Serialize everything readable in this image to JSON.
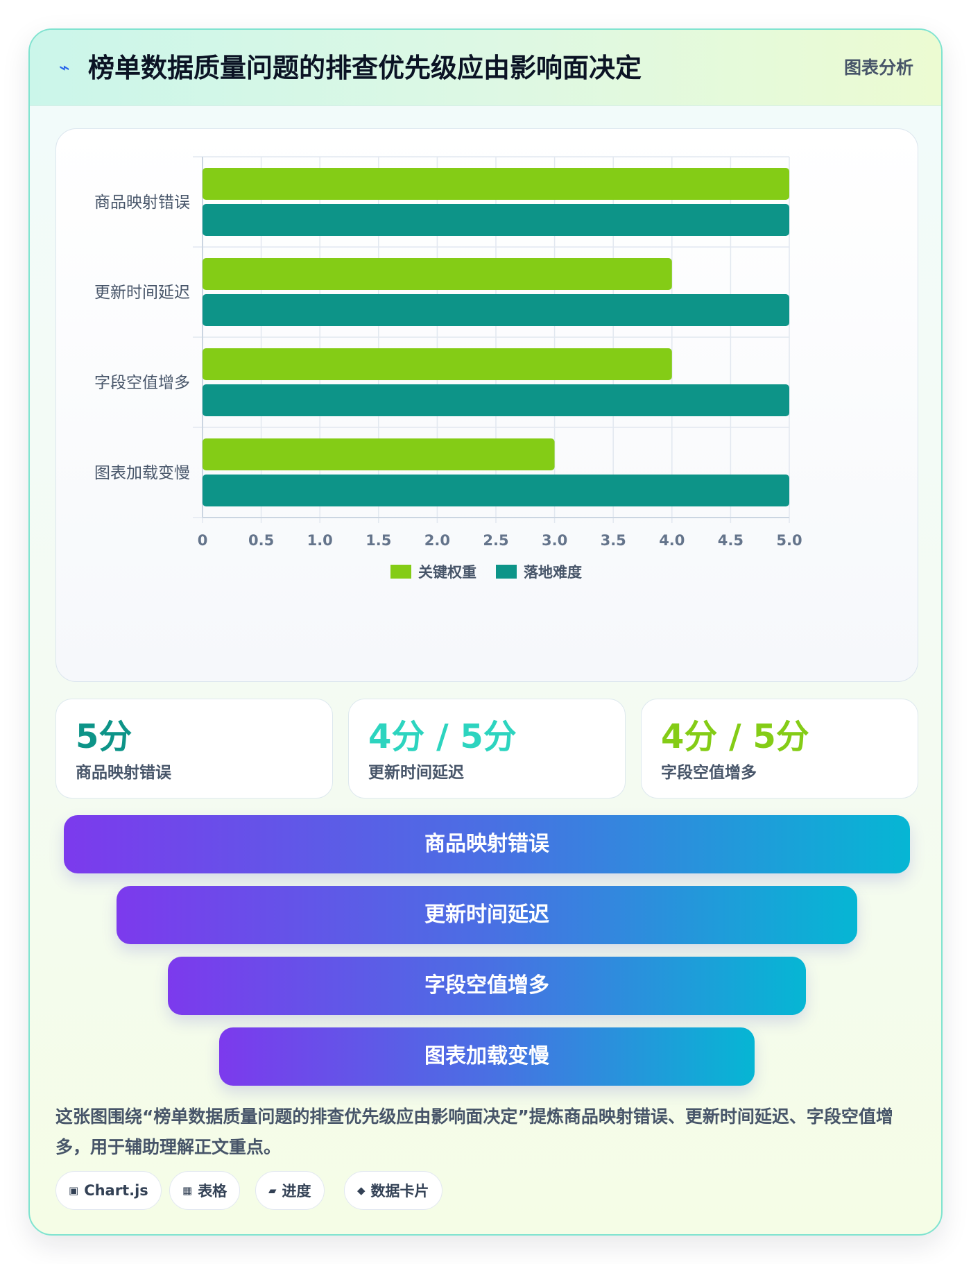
{
  "header": {
    "icon": "lightning-icon",
    "title": "榜单数据质量问题的排查优先级应由影响面决定",
    "tag": "图表分析"
  },
  "chart_data": {
    "type": "bar",
    "orientation": "horizontal",
    "categories": [
      "商品映射错误",
      "更新时间延迟",
      "字段空值增多",
      "图表加载变慢"
    ],
    "series": [
      {
        "name": "关键权重",
        "values": [
          5,
          4,
          4,
          3
        ],
        "color": "#84cc16"
      },
      {
        "name": "落地难度",
        "values": [
          5,
          5,
          5,
          5
        ],
        "color": "#0d9488"
      }
    ],
    "xlim": [
      0,
      5
    ],
    "xticks": [
      "0",
      "0.5",
      "1.0",
      "1.5",
      "2.0",
      "2.5",
      "3.0",
      "3.5",
      "4.0",
      "4.5",
      "5.0"
    ],
    "grid": true,
    "legend_position": "bottom"
  },
  "stats": [
    {
      "value": "5分",
      "label": "商品映射错误",
      "color": "#0d9488"
    },
    {
      "value": "4分 / 5分",
      "label": "更新时间延迟",
      "color": "#2dd4bf"
    },
    {
      "value": "4分 / 5分",
      "label": "字段空值增多",
      "color": "#84cc16"
    }
  ],
  "funnel": [
    {
      "label": "商品映射错误"
    },
    {
      "label": "更新时间延迟"
    },
    {
      "label": "字段空值增多"
    },
    {
      "label": "图表加载变慢"
    }
  ],
  "description": "这张图围绕“榜单数据质量问题的排查优先级应由影响面决定”提炼商品映射错误、更新时间延迟、字段空值增多，用于辅助理解正文重点。",
  "chips": [
    {
      "icon": "square-icon",
      "glyph": "▣",
      "label": "Chart.js"
    },
    {
      "icon": "table-icon",
      "glyph": "▦",
      "label": "表格"
    },
    {
      "icon": "progress-icon",
      "glyph": "▰",
      "label": "进度"
    },
    {
      "icon": "diamond-icon",
      "glyph": "◆",
      "label": "数据卡片"
    }
  ]
}
